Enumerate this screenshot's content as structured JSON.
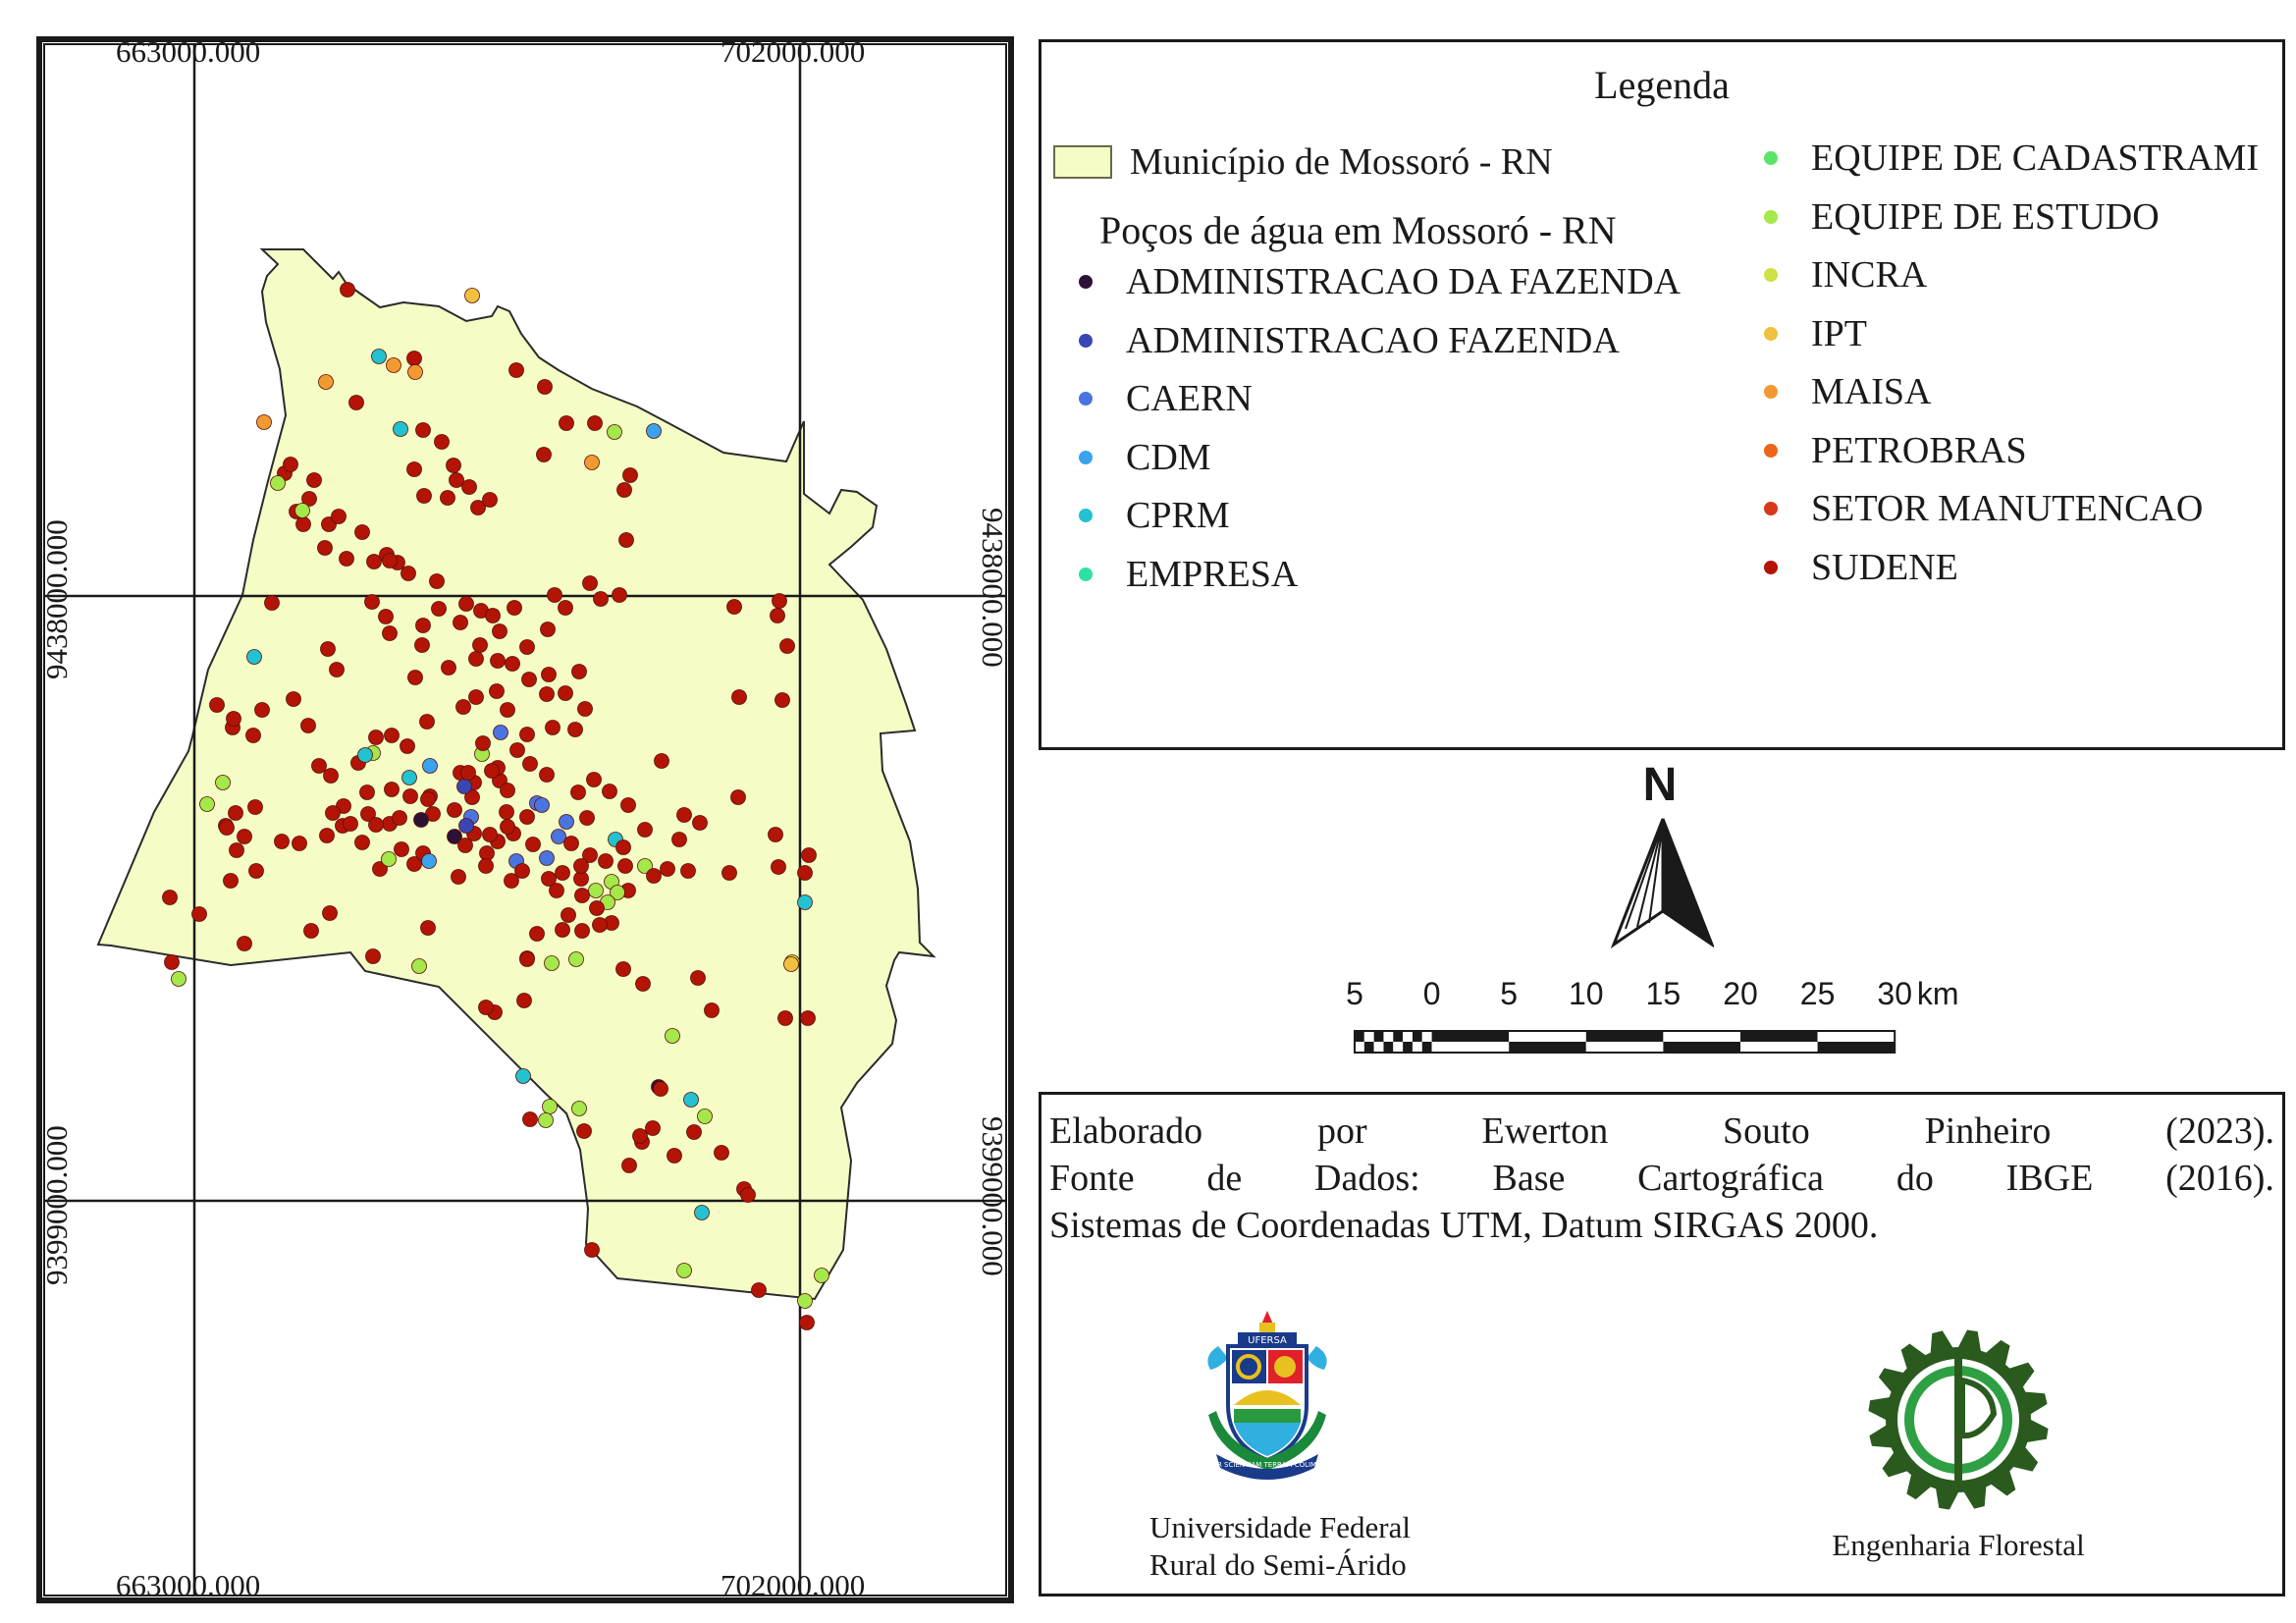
{
  "map": {
    "grid_labels": {
      "x_left_top": "663000.000",
      "x_right_top": "702000.000",
      "x_left_bottom": "663000.000",
      "x_right_bottom": "702000.000",
      "y_upper_left": "9438000.000",
      "y_lower_left": "9399000.000",
      "y_upper_right": "9438000.000",
      "y_lower_right": "9399000.000"
    },
    "municipality_fill": "#f5fcc5",
    "municipality_stroke": "#2b2b2b"
  },
  "legend": {
    "title": "Legenda",
    "municipality_label": "Município de Mossoró - RN",
    "wells_title": "Poços de água em Mossoró - RN",
    "left_items": [
      {
        "label": "ADMINISTRACAO DA FAZENDA",
        "color": "#2c1235"
      },
      {
        "label": "ADMINISTRACAO FAZENDA",
        "color": "#3a46b3"
      },
      {
        "label": "CAERN",
        "color": "#4a74e0"
      },
      {
        "label": "CDM",
        "color": "#3aa2ee"
      },
      {
        "label": "CPRM",
        "color": "#23c2d0"
      },
      {
        "label": "EMPRESA",
        "color": "#2ee0a4"
      }
    ],
    "right_items": [
      {
        "label": "EQUIPE DE CADASTRAMI",
        "color": "#5ee36a"
      },
      {
        "label": "EQUIPE DE ESTUDO",
        "color": "#a4e84a"
      },
      {
        "label": "INCRA",
        "color": "#cfe044"
      },
      {
        "label": "IPT",
        "color": "#f0c040"
      },
      {
        "label": "MAISA",
        "color": "#f29a32"
      },
      {
        "label": "PETROBRAS",
        "color": "#ee6418"
      },
      {
        "label": "SETOR MANUTENCAO",
        "color": "#d8381a"
      },
      {
        "label": "SUDENE",
        "color": "#b31406"
      }
    ]
  },
  "north_arrow": {
    "letter": "N"
  },
  "scale": {
    "labels": [
      "5",
      "0",
      "5",
      "10",
      "15",
      "20",
      "25",
      "30"
    ],
    "unit": "km"
  },
  "credits": {
    "line1": [
      "Elaborado",
      "por",
      "Ewerton",
      "Souto",
      "Pinheiro",
      "(2023)."
    ],
    "line2": [
      "Fonte",
      "de",
      "Dados:",
      "Base",
      "Cartográfica",
      "do",
      "IBGE",
      "(2016)."
    ],
    "line3": "Sistemas de Coordenadas UTM, Datum SIRGAS 2000.",
    "ufersa_caption_1": "Universidade Federal",
    "ufersa_caption_2": "Rural do Semi-Árido",
    "ufersa_seal_text": "UFERSA",
    "ufersa_motto": "PER SCIENTIAM TERRAM COLIMUS",
    "ef_caption": "Engenharia Florestal"
  }
}
